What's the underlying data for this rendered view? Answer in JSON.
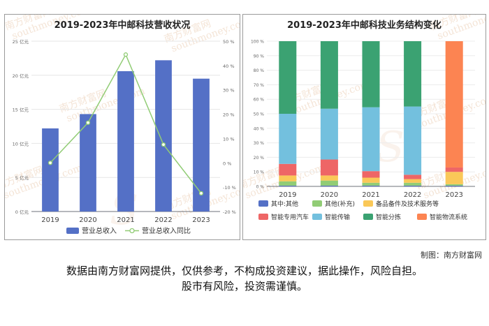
{
  "left_chart": {
    "title": "2019-2023年中邮科技营收状况",
    "legend": [
      "营业总收入",
      "营业总收入同比"
    ]
  },
  "right_chart": {
    "title": "2019-2023年中邮科技业务结构变化",
    "legend": [
      "其中:其他",
      "其他(补充)",
      "备品备件及技术服务等",
      "智能专用汽车",
      "智能传输",
      "智能分拣",
      "智能物流系统"
    ]
  },
  "watermark": {
    "cn": "南方财富网",
    "en": "southmoney.com"
  },
  "credit": "制图：南方财富网",
  "disclaimer": {
    "line1": "数据由南方财富网提供，仅供参考，不构成投资建议，据此操作，风险自担。",
    "line2": "股市有风险，投资需谨慎。"
  },
  "colors": {
    "bar": "#5470c6",
    "line": "#91cc75",
    "other": "#5470c6",
    "other_supp": "#91cc75",
    "spare_parts": "#fac858",
    "special_vehicle": "#ee6666",
    "transmission": "#73c0de",
    "sorting": "#3ba272",
    "logistics_system": "#fc8452"
  },
  "chart_data": [
    {
      "type": "bar",
      "title": "2019-2023年中邮科技营收状况",
      "categories": [
        "2019",
        "2020",
        "2021",
        "2022",
        "2023"
      ],
      "y_ticks": [
        "0 亿元",
        "5 亿元",
        "10 亿元",
        "15 亿元",
        "20 亿元",
        "25 亿元"
      ],
      "y2_ticks": [
        "-20 %",
        "-10 %",
        "0 %",
        "10 %",
        "20 %",
        "30 %",
        "40 %",
        "50 %"
      ],
      "ylim": [
        0,
        25
      ],
      "y2lim": [
        -20,
        50
      ],
      "series": [
        {
          "name": "营业总收入",
          "type": "bar",
          "axis": "left",
          "values": [
            12.2,
            14.3,
            20.6,
            22.2,
            19.5
          ]
        },
        {
          "name": "营业总收入同比",
          "type": "line",
          "axis": "right",
          "values": [
            0,
            16.5,
            44.5,
            7.5,
            -12.5
          ]
        }
      ],
      "legend_position": "bottom"
    },
    {
      "type": "bar",
      "stacked": true,
      "title": "2019-2023年中邮科技业务结构变化",
      "categories": [
        "2019",
        "2020",
        "2021",
        "2022",
        "2023"
      ],
      "y_ticks": [
        "0 %",
        "10 %",
        "20 %",
        "30 %",
        "40 %",
        "50 %",
        "60 %",
        "70 %",
        "80 %",
        "90 %",
        "100 %"
      ],
      "ylim": [
        0,
        100
      ],
      "series": [
        {
          "name": "其中:其他",
          "values": [
            0.5,
            0.5,
            0.5,
            0.5,
            0.5
          ]
        },
        {
          "name": "其他(补充)",
          "values": [
            3,
            3.5,
            2,
            2,
            1
          ]
        },
        {
          "name": "备品备件及技术服务等",
          "values": [
            4,
            3.5,
            3.5,
            2.5,
            8.5
          ]
        },
        {
          "name": "智能专用汽车",
          "values": [
            8,
            11,
            4.5,
            3,
            3
          ]
        },
        {
          "name": "智能传输",
          "values": [
            34.5,
            35,
            44,
            47,
            0
          ]
        },
        {
          "name": "智能分拣",
          "values": [
            50,
            46.5,
            45.5,
            45,
            0
          ]
        },
        {
          "name": "智能物流系统",
          "values": [
            0,
            0,
            0,
            0,
            87
          ]
        }
      ],
      "legend_position": "bottom"
    }
  ]
}
